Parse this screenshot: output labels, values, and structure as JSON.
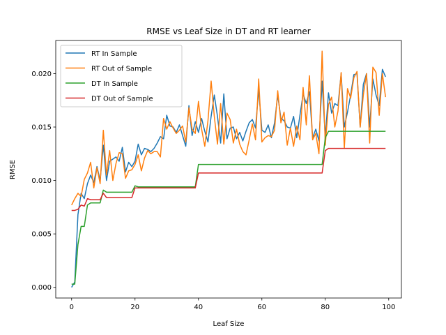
{
  "chart_data": {
    "type": "line",
    "title": "RMSE vs Leaf Size in DT and RT learner",
    "xlabel": "Leaf Size",
    "ylabel": "RMSE",
    "xlim": [
      -5,
      104
    ],
    "ylim": [
      -0.001,
      0.0231
    ],
    "xticks": [
      0,
      20,
      40,
      60,
      80,
      100
    ],
    "yticks": [
      0.0,
      0.005,
      0.01,
      0.015,
      0.02
    ],
    "ytick_labels": [
      "0.000",
      "0.005",
      "0.010",
      "0.015",
      "0.020"
    ],
    "grid": false,
    "legend_position": "upper-left",
    "x": [
      0,
      1,
      2,
      3,
      4,
      5,
      6,
      7,
      8,
      9,
      10,
      11,
      12,
      13,
      14,
      15,
      16,
      17,
      18,
      19,
      20,
      21,
      22,
      23,
      24,
      25,
      26,
      27,
      28,
      29,
      30,
      31,
      32,
      33,
      34,
      35,
      36,
      37,
      38,
      39,
      40,
      41,
      42,
      43,
      44,
      45,
      46,
      47,
      48,
      49,
      50,
      51,
      52,
      53,
      54,
      55,
      56,
      57,
      58,
      59,
      60,
      61,
      62,
      63,
      64,
      65,
      66,
      67,
      68,
      69,
      70,
      71,
      72,
      73,
      74,
      75,
      76,
      77,
      78,
      79,
      80,
      81,
      82,
      83,
      84,
      85,
      86,
      87,
      88,
      89,
      90,
      91,
      92,
      93,
      94,
      95,
      96,
      97,
      98,
      99
    ],
    "series": [
      {
        "name": "RT In Sample",
        "color": "#1f77b4",
        "values": [
          0.0,
          0.0005,
          0.0068,
          0.0088,
          0.0083,
          0.0097,
          0.0105,
          0.0098,
          0.0113,
          0.01,
          0.0133,
          0.01,
          0.0118,
          0.012,
          0.0122,
          0.0118,
          0.0131,
          0.0108,
          0.0117,
          0.0113,
          0.0118,
          0.0134,
          0.0124,
          0.013,
          0.0129,
          0.0127,
          0.013,
          0.0135,
          0.0141,
          0.0139,
          0.0161,
          0.0151,
          0.015,
          0.0145,
          0.0152,
          0.0142,
          0.0132,
          0.017,
          0.0142,
          0.0155,
          0.0145,
          0.0158,
          0.0146,
          0.0136,
          0.016,
          0.018,
          0.016,
          0.0135,
          0.0181,
          0.0139,
          0.0149,
          0.015,
          0.0139,
          0.0145,
          0.0137,
          0.0146,
          0.0154,
          0.0157,
          0.0149,
          0.0185,
          0.0147,
          0.0145,
          0.0152,
          0.014,
          0.0154,
          0.018,
          0.0158,
          0.0156,
          0.015,
          0.0149,
          0.016,
          0.014,
          0.0161,
          0.0181,
          0.0172,
          0.0183,
          0.014,
          0.0148,
          0.0137,
          0.0193,
          0.014,
          0.0182,
          0.0163,
          0.0172,
          0.017,
          0.02,
          0.015,
          0.0164,
          0.018,
          0.0199,
          0.02,
          0.015,
          0.019,
          0.02,
          0.015,
          0.0195,
          0.018,
          0.017,
          0.0204,
          0.0197
        ]
      },
      {
        "name": "RT Out of Sample",
        "color": "#ff7f0e",
        "values": [
          0.0077,
          0.0083,
          0.0088,
          0.0085,
          0.0101,
          0.0107,
          0.0117,
          0.0093,
          0.0112,
          0.0097,
          0.0147,
          0.0105,
          0.0128,
          0.01,
          0.0116,
          0.0126,
          0.0125,
          0.0102,
          0.0109,
          0.011,
          0.0115,
          0.0124,
          0.0109,
          0.0121,
          0.0128,
          0.0125,
          0.0127,
          0.0127,
          0.0122,
          0.0158,
          0.0148,
          0.0155,
          0.0149,
          0.0144,
          0.0147,
          0.0151,
          0.0136,
          0.0168,
          0.0148,
          0.0144,
          0.0174,
          0.0148,
          0.0132,
          0.0156,
          0.0193,
          0.016,
          0.0134,
          0.0172,
          0.0134,
          0.0163,
          0.0157,
          0.0135,
          0.0148,
          0.0134,
          0.0127,
          0.0124,
          0.0138,
          0.0153,
          0.0138,
          0.0195,
          0.0136,
          0.014,
          0.0142,
          0.0141,
          0.0147,
          0.0184,
          0.0154,
          0.0164,
          0.0133,
          0.0149,
          0.0132,
          0.0151,
          0.0138,
          0.0187,
          0.0152,
          0.0198,
          0.0138,
          0.0144,
          0.0125,
          0.0221,
          0.0133,
          0.0171,
          0.0178,
          0.015,
          0.0165,
          0.0201,
          0.013,
          0.0186,
          0.0177,
          0.0196,
          0.0202,
          0.015,
          0.018,
          0.02,
          0.0135,
          0.0206,
          0.0201,
          0.0161,
          0.02,
          0.0178
        ]
      },
      {
        "name": "DT In Sample",
        "color": "#2ca02c",
        "values": [
          0.0003,
          0.0003,
          0.004,
          0.0057,
          0.0057,
          0.0077,
          0.0079,
          0.0079,
          0.0079,
          0.0079,
          0.0091,
          0.0089,
          0.0089,
          0.0089,
          0.0089,
          0.0089,
          0.0089,
          0.0089,
          0.0089,
          0.0089,
          0.0095,
          0.0094,
          0.0094,
          0.0094,
          0.0094,
          0.0094,
          0.0094,
          0.0094,
          0.0094,
          0.0094,
          0.0094,
          0.0094,
          0.0094,
          0.0094,
          0.0094,
          0.0094,
          0.0094,
          0.0094,
          0.0094,
          0.0094,
          0.0115,
          0.0115,
          0.0115,
          0.0115,
          0.0115,
          0.0115,
          0.0115,
          0.0115,
          0.0115,
          0.0115,
          0.0115,
          0.0115,
          0.0115,
          0.0115,
          0.0115,
          0.0115,
          0.0115,
          0.0115,
          0.0115,
          0.0115,
          0.0115,
          0.0115,
          0.0115,
          0.0115,
          0.0115,
          0.0115,
          0.0115,
          0.0115,
          0.0115,
          0.0115,
          0.0115,
          0.0115,
          0.0115,
          0.0115,
          0.0115,
          0.0115,
          0.0115,
          0.0115,
          0.0115,
          0.0115,
          0.014,
          0.0146,
          0.0146,
          0.0146,
          0.0146,
          0.0146,
          0.0146,
          0.0146,
          0.0146,
          0.0146,
          0.0146,
          0.0146,
          0.0146,
          0.0146,
          0.0146,
          0.0146,
          0.0146,
          0.0146,
          0.0146,
          0.0146
        ]
      },
      {
        "name": "DT Out of Sample",
        "color": "#d62728",
        "values": [
          0.0072,
          0.0072,
          0.0073,
          0.0077,
          0.0076,
          0.0083,
          0.0082,
          0.0082,
          0.0082,
          0.0082,
          0.0088,
          0.0084,
          0.0084,
          0.0084,
          0.0084,
          0.0084,
          0.0084,
          0.0084,
          0.0084,
          0.0084,
          0.0093,
          0.0093,
          0.0093,
          0.0093,
          0.0093,
          0.0093,
          0.0093,
          0.0093,
          0.0093,
          0.0093,
          0.0093,
          0.0093,
          0.0093,
          0.0093,
          0.0093,
          0.0093,
          0.0093,
          0.0093,
          0.0093,
          0.0093,
          0.0107,
          0.0107,
          0.0107,
          0.0107,
          0.0107,
          0.0107,
          0.0107,
          0.0107,
          0.0107,
          0.0107,
          0.0107,
          0.0107,
          0.0107,
          0.0107,
          0.0107,
          0.0107,
          0.0107,
          0.0107,
          0.0107,
          0.0107,
          0.0107,
          0.0107,
          0.0107,
          0.0107,
          0.0107,
          0.0107,
          0.0107,
          0.0107,
          0.0107,
          0.0107,
          0.0107,
          0.0107,
          0.0107,
          0.0107,
          0.0107,
          0.0107,
          0.0107,
          0.0107,
          0.0107,
          0.0107,
          0.0128,
          0.013,
          0.013,
          0.013,
          0.013,
          0.013,
          0.013,
          0.013,
          0.013,
          0.013,
          0.013,
          0.013,
          0.013,
          0.013,
          0.013,
          0.013,
          0.013,
          0.013,
          0.013,
          0.013
        ]
      }
    ]
  }
}
